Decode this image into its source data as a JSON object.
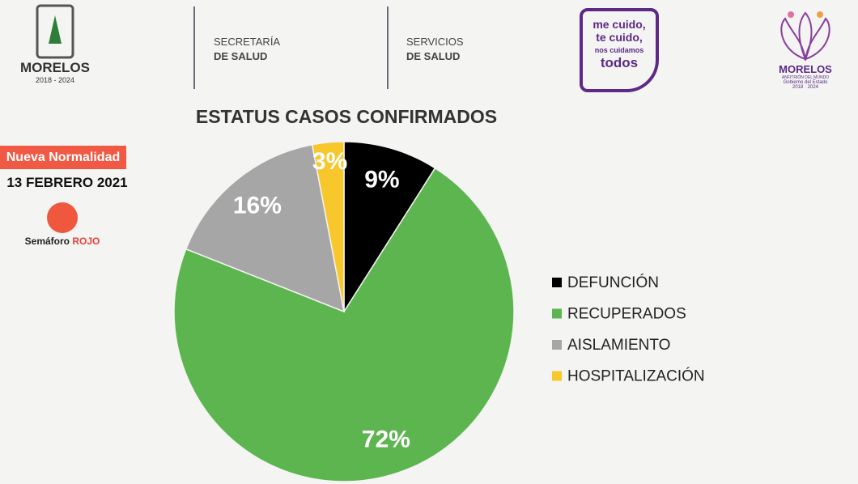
{
  "header": {
    "state_logo": {
      "name": "MORELOS",
      "years": "2018 - 2024"
    },
    "secretaria": {
      "line1": "SECRETARÍA",
      "line2": "DE SALUD"
    },
    "servicios": {
      "line1": "SERVICIOS",
      "line2": "DE SALUD"
    },
    "campaign": {
      "line1": "me cuido,",
      "line2": "te cuido,",
      "line3": "nos cuidamos",
      "line4": "todos"
    },
    "gov_logo": {
      "name": "MORELOS",
      "motto": "ANFITRIÓN DEL MUNDO",
      "line1": "Gobierno del Estado",
      "years": "2018 · 2024"
    }
  },
  "status_panel": {
    "badge": "Nueva Normalidad",
    "date": "13 FEBRERO 2021",
    "semaforo_label": "Semáforo",
    "semaforo_value": "ROJO"
  },
  "chart_data": {
    "type": "pie",
    "title": "ESTATUS CASOS CONFIRMADOS",
    "categories": [
      "DEFUNCIÓN",
      "RECUPERADOS",
      "AISLAMIENTO",
      "HOSPITALIZACIÓN"
    ],
    "values": [
      9,
      72,
      16,
      3
    ],
    "value_labels": [
      "9%",
      "72%",
      "16%",
      "3%"
    ],
    "colors": [
      "#000000",
      "#5db54f",
      "#a6a6a6",
      "#f7c72c"
    ],
    "legend": "right"
  }
}
